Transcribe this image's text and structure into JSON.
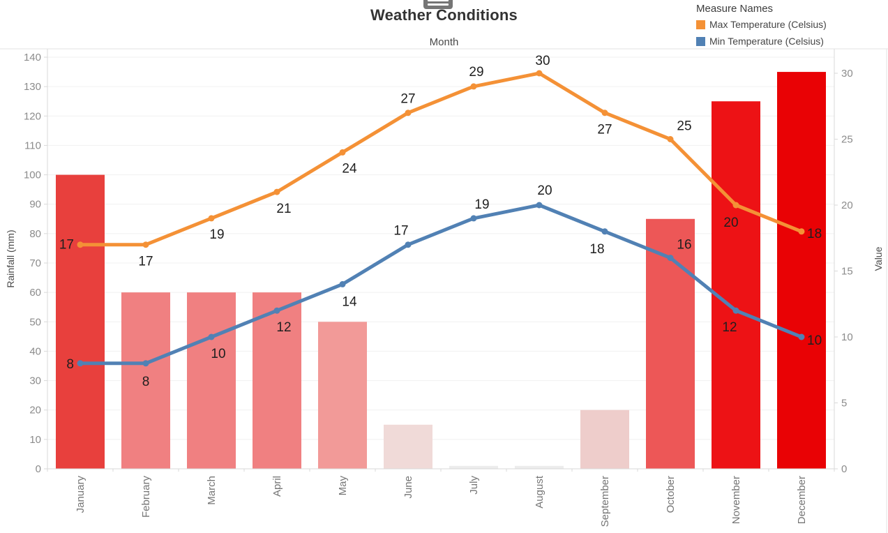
{
  "header": {
    "title": "Weather Conditions",
    "x_axis_title": "Month"
  },
  "legend": {
    "title": "Measure Names",
    "items": [
      {
        "label": "Max Temperature (Celsius)",
        "color": "#f49136"
      },
      {
        "label": "Min Temperature (Celsius)",
        "color": "#5181b4"
      }
    ]
  },
  "theme": {
    "grid": "#f1f1f1",
    "axis_line": "#d9d9d9",
    "border": "#e3e3e3",
    "tick_text": "#8b8b8b",
    "month_text": "#757575",
    "label_text": "#1f1f1f",
    "title_text": "#333333",
    "toolbar_icon": "#757575"
  },
  "chart_data": {
    "type": "combo-bar-line",
    "title": "Weather Conditions",
    "xlabel": "Month",
    "grid": true,
    "legend_position": "top-right",
    "categories": [
      "January",
      "February",
      "March",
      "April",
      "May",
      "June",
      "July",
      "August",
      "September",
      "October",
      "November",
      "December"
    ],
    "bars": {
      "name": "Rainfall",
      "axis": "left",
      "values": [
        100,
        60,
        60,
        60,
        50,
        15,
        1,
        1,
        20,
        85,
        125,
        135
      ],
      "colors": [
        "#e8403d",
        "#f08081",
        "#f08081",
        "#f08081",
        "#f29a98",
        "#f0dad8",
        "#ececec",
        "#ececec",
        "#eecdcb",
        "#ed5757",
        "#ed1215",
        "#e90205"
      ]
    },
    "series": [
      {
        "id": "max-temperature",
        "name": "Max Temperature (Celsius)",
        "type": "line",
        "axis": "right",
        "color": "#f49136",
        "values": [
          17,
          17,
          19,
          21,
          24,
          27,
          29,
          30,
          27,
          25,
          20,
          18
        ],
        "label_offsets": [
          [
            -9,
            6
          ],
          [
            0,
            30
          ],
          [
            8,
            29
          ],
          [
            10,
            30
          ],
          [
            10,
            29
          ],
          [
            0,
            -14
          ],
          [
            4,
            -15
          ],
          [
            5,
            -12
          ],
          [
            0,
            30
          ],
          [
            20,
            -13
          ],
          [
            -7,
            31
          ],
          [
            8,
            9
          ]
        ]
      },
      {
        "id": "min-temperature",
        "name": "Min Temperature (Celsius)",
        "type": "line",
        "axis": "right",
        "color": "#5181b4",
        "values": [
          8,
          8,
          10,
          12,
          14,
          17,
          19,
          20,
          18,
          16,
          12,
          10
        ],
        "label_offsets": [
          [
            -9,
            7
          ],
          [
            0,
            32
          ],
          [
            10,
            30
          ],
          [
            10,
            30
          ],
          [
            10,
            31
          ],
          [
            -10,
            -14
          ],
          [
            12,
            -14
          ],
          [
            8,
            -15
          ],
          [
            -11,
            31
          ],
          [
            20,
            -13
          ],
          [
            -9,
            30
          ],
          [
            8,
            11
          ]
        ]
      }
    ],
    "left_axis": {
      "label": "Rainfall (mm)",
      "min": 0,
      "max": 140,
      "tick_step": 10,
      "ticks": [
        0,
        10,
        20,
        30,
        40,
        50,
        60,
        70,
        80,
        90,
        100,
        110,
        120,
        130,
        140
      ]
    },
    "right_axis": {
      "label": "Value",
      "min": 0,
      "max": 30,
      "tick_step": 5,
      "ticks": [
        0,
        5,
        10,
        15,
        20,
        25,
        30
      ]
    }
  }
}
